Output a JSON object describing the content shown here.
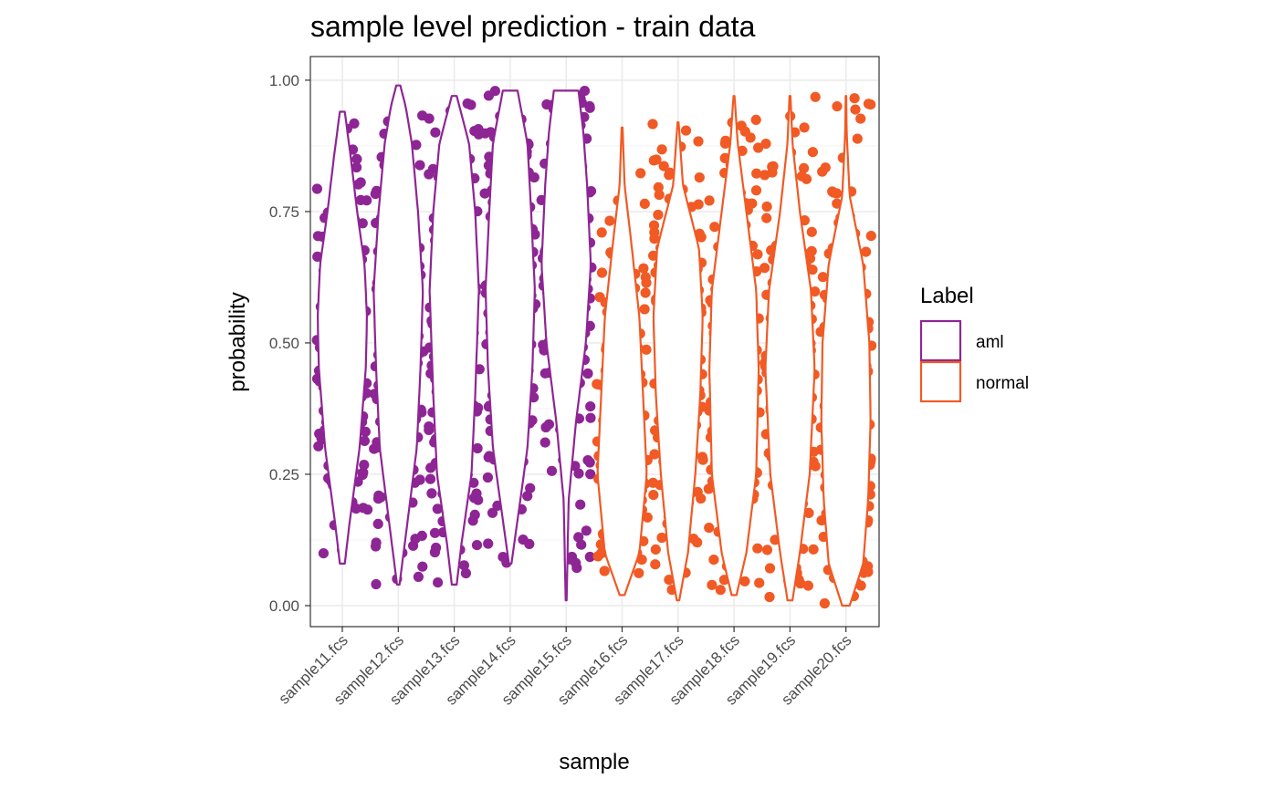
{
  "chart_data": {
    "type": "violin",
    "title": "sample level prediction - train data",
    "xlabel": "sample",
    "ylabel": "probability",
    "ylim": [
      -0.04,
      1.045
    ],
    "grid": true,
    "y_ticks": [
      {
        "value": 0.0,
        "label": "0.00"
      },
      {
        "value": 0.25,
        "label": "0.25"
      },
      {
        "value": 0.5,
        "label": "0.50"
      },
      {
        "value": 0.75,
        "label": "0.75"
      },
      {
        "value": 1.0,
        "label": "1.00"
      }
    ],
    "legend": {
      "title": "Label",
      "position": "right",
      "entries": [
        {
          "key": "aml",
          "label": "aml",
          "color": "#8e2594"
        },
        {
          "key": "normal",
          "label": "normal",
          "color": "#f15a24"
        }
      ]
    },
    "categories": [
      "sample11.fcs",
      "sample12.fcs",
      "sample13.fcs",
      "sample14.fcs",
      "sample15.fcs",
      "sample16.fcs",
      "sample17.fcs",
      "sample18.fcs",
      "sample19.fcs",
      "sample20.fcs"
    ],
    "samples": [
      {
        "name": "sample11.fcs",
        "label": "aml",
        "min": 0.08,
        "max": 0.94,
        "density": [
          [
            0.08,
            0.1
          ],
          [
            0.16,
            0.3
          ],
          [
            0.3,
            0.7
          ],
          [
            0.45,
            0.95
          ],
          [
            0.55,
            1.0
          ],
          [
            0.65,
            0.9
          ],
          [
            0.75,
            0.6
          ],
          [
            0.85,
            0.35
          ],
          [
            0.94,
            0.1
          ]
        ]
      },
      {
        "name": "sample12.fcs",
        "label": "aml",
        "min": 0.04,
        "max": 0.99,
        "density": [
          [
            0.04,
            0.05
          ],
          [
            0.15,
            0.35
          ],
          [
            0.3,
            0.75
          ],
          [
            0.45,
            0.9
          ],
          [
            0.6,
            1.0
          ],
          [
            0.75,
            0.8
          ],
          [
            0.88,
            0.55
          ],
          [
            0.95,
            0.3
          ],
          [
            0.99,
            0.08
          ]
        ]
      },
      {
        "name": "sample13.fcs",
        "label": "aml",
        "min": 0.04,
        "max": 0.97,
        "density": [
          [
            0.04,
            0.1
          ],
          [
            0.12,
            0.3
          ],
          [
            0.25,
            0.7
          ],
          [
            0.4,
            0.85
          ],
          [
            0.6,
            1.0
          ],
          [
            0.75,
            0.85
          ],
          [
            0.88,
            0.6
          ],
          [
            0.97,
            0.1
          ]
        ]
      },
      {
        "name": "sample14.fcs",
        "label": "aml",
        "min": 0.08,
        "max": 0.98,
        "density": [
          [
            0.08,
            0.05
          ],
          [
            0.18,
            0.35
          ],
          [
            0.3,
            0.7
          ],
          [
            0.45,
            0.9
          ],
          [
            0.6,
            1.0
          ],
          [
            0.75,
            0.85
          ],
          [
            0.88,
            0.7
          ],
          [
            0.98,
            0.3
          ]
        ]
      },
      {
        "name": "sample15.fcs",
        "label": "aml",
        "min": 0.01,
        "max": 0.98,
        "density": [
          [
            0.01,
            0.02
          ],
          [
            0.2,
            0.1
          ],
          [
            0.35,
            0.4
          ],
          [
            0.5,
            0.8
          ],
          [
            0.65,
            1.0
          ],
          [
            0.8,
            0.85
          ],
          [
            0.9,
            0.7
          ],
          [
            0.98,
            0.5
          ]
        ]
      },
      {
        "name": "sample16.fcs",
        "label": "normal",
        "min": 0.02,
        "max": 0.91,
        "density": [
          [
            0.02,
            0.1
          ],
          [
            0.1,
            0.7
          ],
          [
            0.25,
            1.0
          ],
          [
            0.4,
            0.85
          ],
          [
            0.55,
            0.7
          ],
          [
            0.7,
            0.35
          ],
          [
            0.8,
            0.1
          ],
          [
            0.91,
            0.02
          ]
        ]
      },
      {
        "name": "sample17.fcs",
        "label": "normal",
        "min": 0.01,
        "max": 0.92,
        "density": [
          [
            0.01,
            0.05
          ],
          [
            0.1,
            0.4
          ],
          [
            0.25,
            0.7
          ],
          [
            0.4,
            0.9
          ],
          [
            0.55,
            1.0
          ],
          [
            0.68,
            0.85
          ],
          [
            0.8,
            0.2
          ],
          [
            0.92,
            0.02
          ]
        ]
      },
      {
        "name": "sample18.fcs",
        "label": "normal",
        "min": 0.02,
        "max": 0.97,
        "density": [
          [
            0.02,
            0.1
          ],
          [
            0.1,
            0.5
          ],
          [
            0.25,
            0.9
          ],
          [
            0.45,
            1.0
          ],
          [
            0.6,
            0.9
          ],
          [
            0.75,
            0.5
          ],
          [
            0.88,
            0.15
          ],
          [
            0.97,
            0.02
          ]
        ]
      },
      {
        "name": "sample19.fcs",
        "label": "normal",
        "min": 0.01,
        "max": 0.97,
        "density": [
          [
            0.01,
            0.1
          ],
          [
            0.1,
            0.4
          ],
          [
            0.25,
            0.8
          ],
          [
            0.45,
            1.0
          ],
          [
            0.6,
            0.85
          ],
          [
            0.75,
            0.4
          ],
          [
            0.88,
            0.1
          ],
          [
            0.97,
            0.02
          ]
        ]
      },
      {
        "name": "sample20.fcs",
        "label": "normal",
        "min": 0.0,
        "max": 0.97,
        "density": [
          [
            0.0,
            0.15
          ],
          [
            0.08,
            0.7
          ],
          [
            0.2,
            0.9
          ],
          [
            0.35,
            1.0
          ],
          [
            0.5,
            0.95
          ],
          [
            0.65,
            0.7
          ],
          [
            0.78,
            0.15
          ],
          [
            0.9,
            0.03
          ],
          [
            0.97,
            0.01
          ]
        ]
      }
    ]
  }
}
